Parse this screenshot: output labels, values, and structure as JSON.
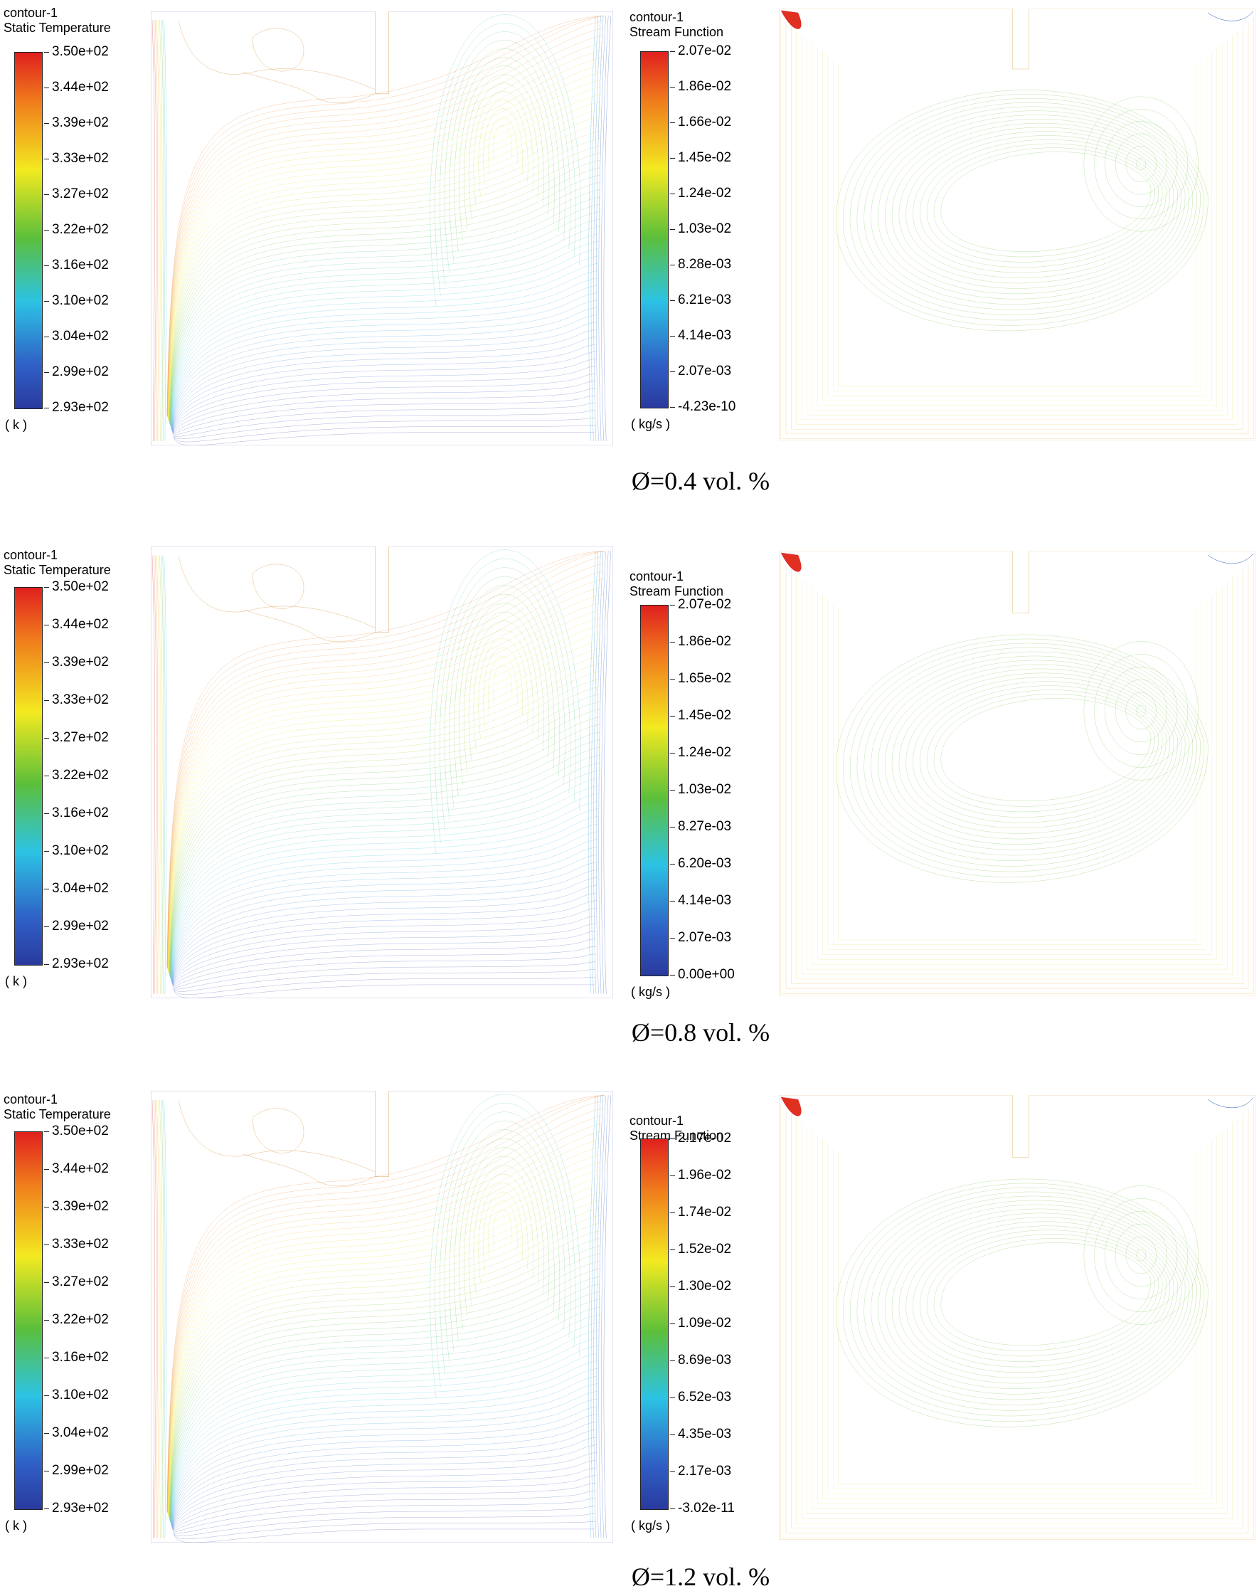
{
  "rows": [
    {
      "caption": "Ø=0.4 vol. %",
      "temperature": {
        "title1": "contour-1",
        "title2": "Static Temperature",
        "ticks": [
          "3.50e+02",
          "3.44e+02",
          "3.39e+02",
          "3.33e+02",
          "3.27e+02",
          "3.22e+02",
          "3.16e+02",
          "3.10e+02",
          "3.04e+02",
          "2.99e+02",
          "2.93e+02"
        ],
        "unit": "( k )"
      },
      "stream": {
        "title1": "contour-1",
        "title2": "Stream Function",
        "ticks": [
          "2.07e-02",
          "1.86e-02",
          "1.66e-02",
          "1.45e-02",
          "1.24e-02",
          "1.03e-02",
          "8.28e-03",
          "6.21e-03",
          "4.14e-03",
          "2.07e-03",
          "-4.23e-10"
        ],
        "unit": "( kg/s )"
      }
    },
    {
      "caption": "Ø=0.8 vol. %",
      "temperature": {
        "title1": "contour-1",
        "title2": "Static Temperature",
        "ticks": [
          "3.50e+02",
          "3.44e+02",
          "3.39e+02",
          "3.33e+02",
          "3.27e+02",
          "3.22e+02",
          "3.16e+02",
          "3.10e+02",
          "3.04e+02",
          "2.99e+02",
          "2.93e+02"
        ],
        "unit": "( k )"
      },
      "stream": {
        "title1": "contour-1",
        "title2": "Stream Function",
        "ticks": [
          "2.07e-02",
          "1.86e-02",
          "1.65e-02",
          "1.45e-02",
          "1.24e-02",
          "1.03e-02",
          "8.27e-03",
          "6.20e-03",
          "4.14e-03",
          "2.07e-03",
          "0.00e+00"
        ],
        "unit": "( kg/s )"
      }
    },
    {
      "caption": "Ø=1.2 vol. %",
      "temperature": {
        "title1": "contour-1",
        "title2": "Static Temperature",
        "ticks": [
          "3.50e+02",
          "3.44e+02",
          "3.39e+02",
          "3.33e+02",
          "3.27e+02",
          "3.22e+02",
          "3.16e+02",
          "3.10e+02",
          "3.04e+02",
          "2.99e+02",
          "2.93e+02"
        ],
        "unit": "( k )"
      },
      "stream": {
        "title1": "contour-1",
        "title2": "Stream Function",
        "ticks": [
          "2.17e-02",
          "1.96e-02",
          "1.74e-02",
          "1.52e-02",
          "1.30e-02",
          "1.09e-02",
          "8.69e-03",
          "6.52e-03",
          "4.35e-03",
          "2.17e-03",
          "-3.02e-11"
        ],
        "unit": "( kg/s )"
      }
    }
  ]
}
